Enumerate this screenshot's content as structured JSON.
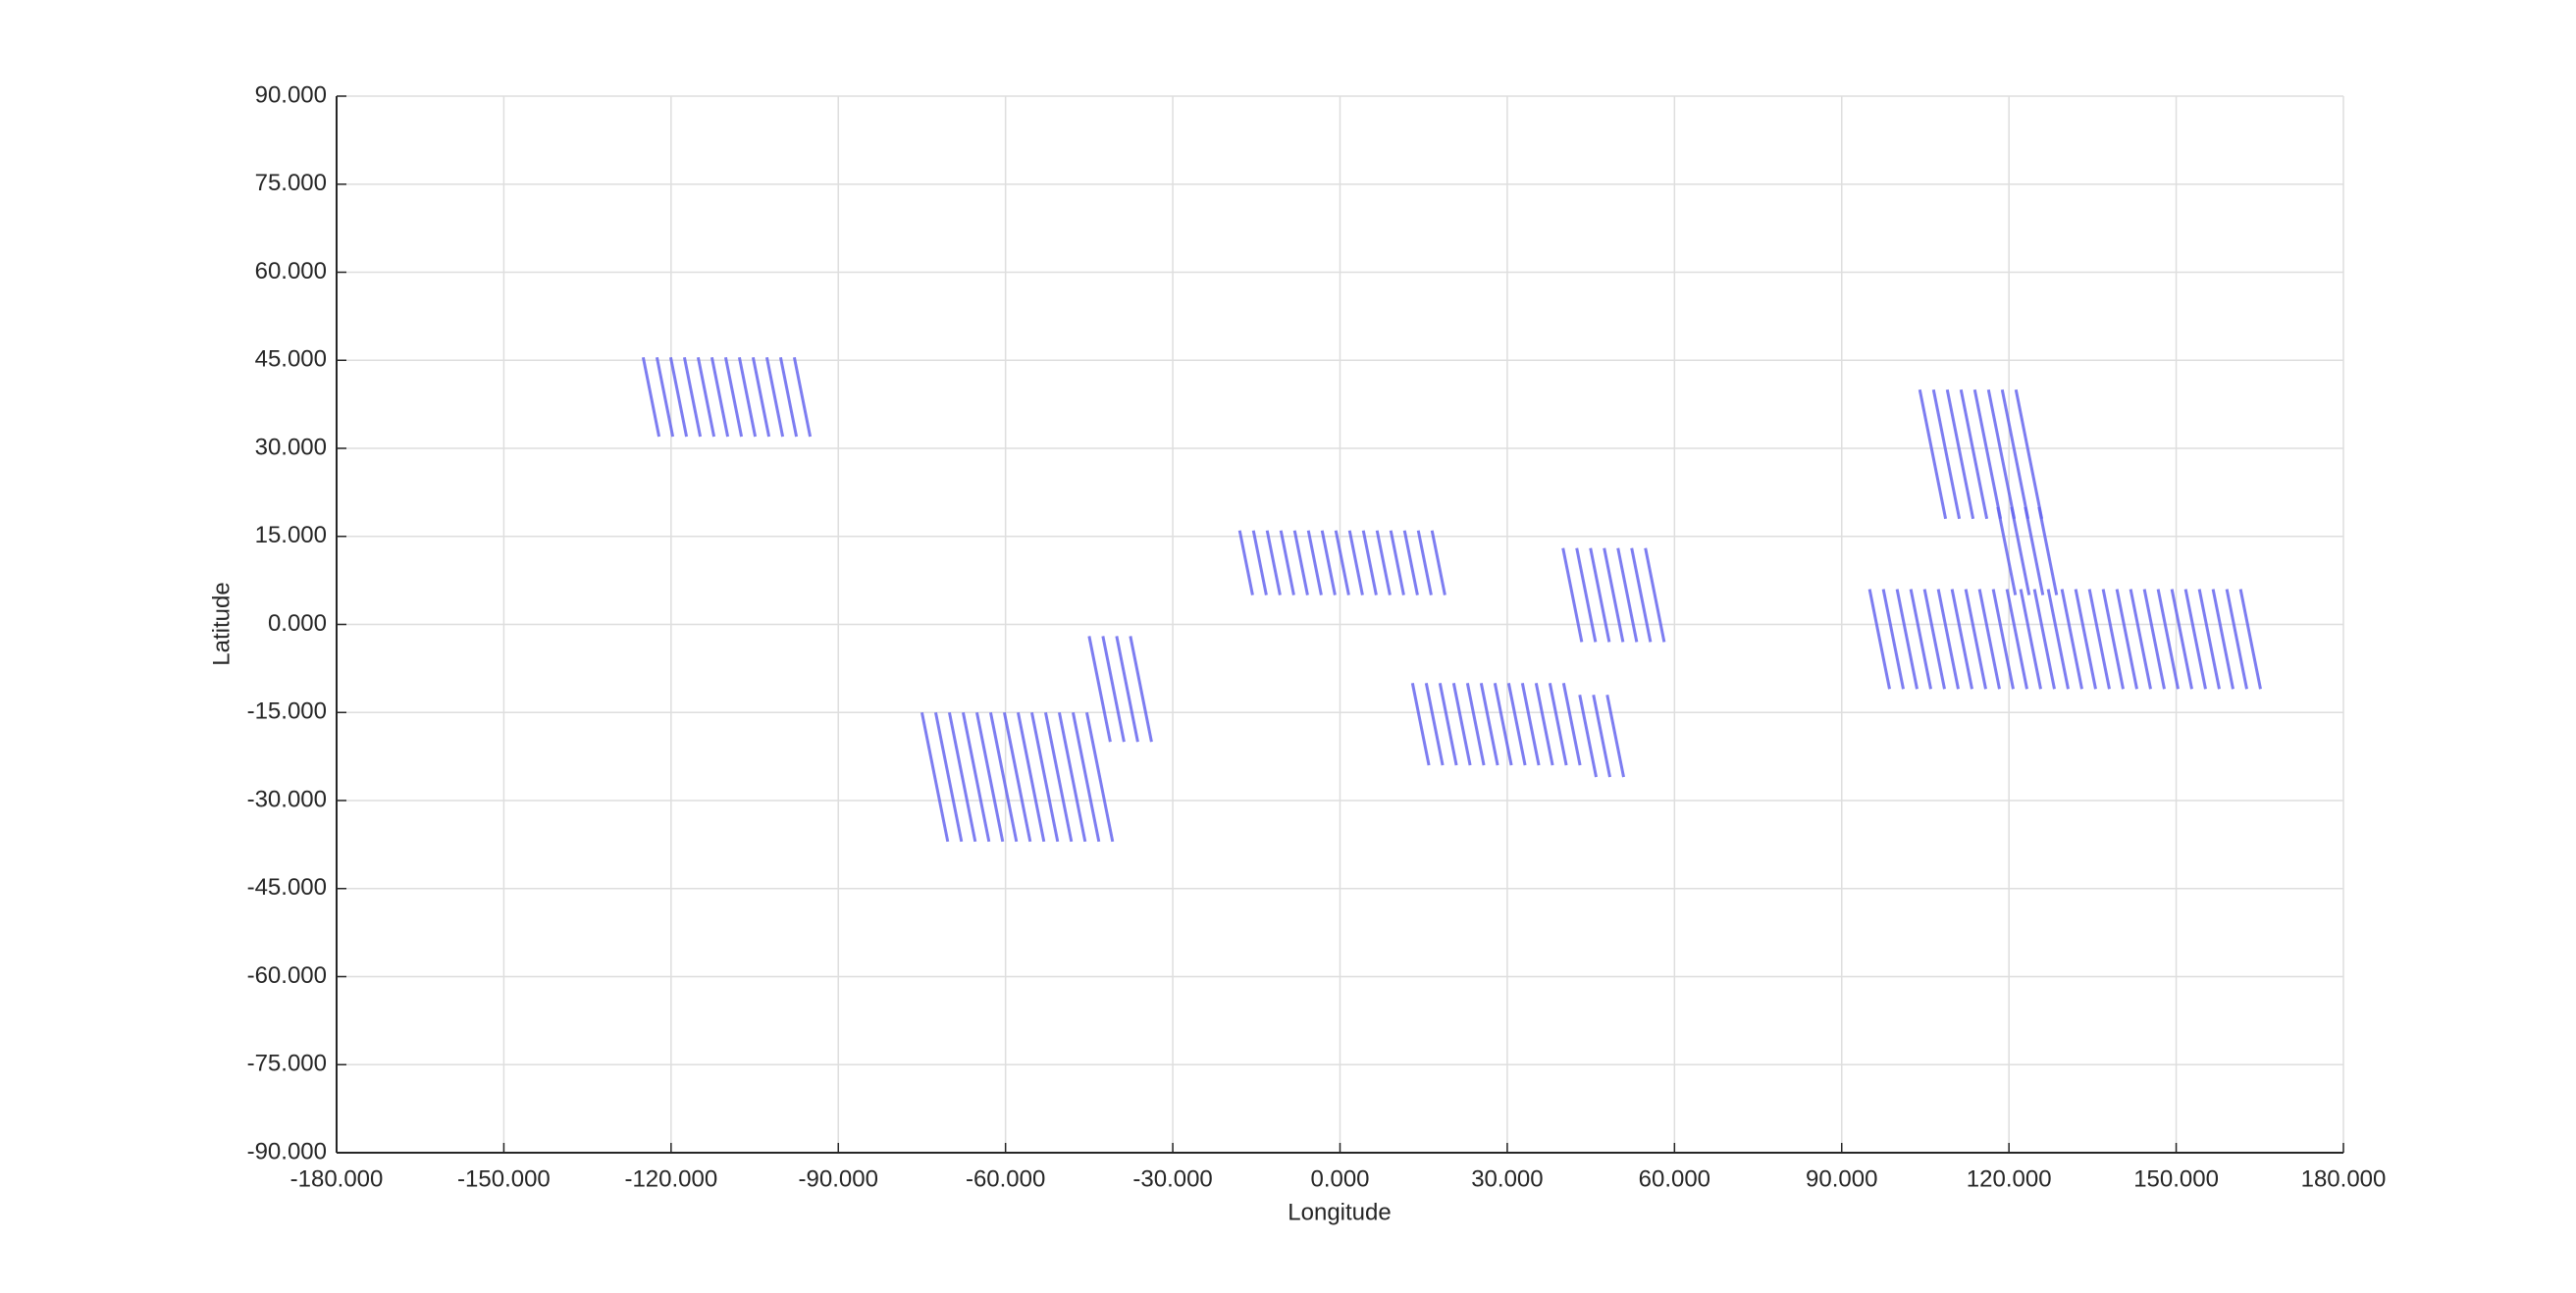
{
  "chart_data": {
    "type": "map",
    "xlabel": "Longitude",
    "ylabel": "Latitude",
    "xlim": [
      -180,
      180
    ],
    "ylim": [
      -90,
      90
    ],
    "xticks": [
      {
        "value": -180,
        "label": "-180.000"
      },
      {
        "value": -150,
        "label": "-150.000"
      },
      {
        "value": -120,
        "label": "-120.000"
      },
      {
        "value": -90,
        "label": "-90.000"
      },
      {
        "value": -60,
        "label": "-60.000"
      },
      {
        "value": -30,
        "label": "-30.000"
      },
      {
        "value": 0,
        "label": "0.000"
      },
      {
        "value": 30,
        "label": "30.000"
      },
      {
        "value": 60,
        "label": "60.000"
      },
      {
        "value": 90,
        "label": "90.000"
      },
      {
        "value": 120,
        "label": "120.000"
      },
      {
        "value": 150,
        "label": "150.000"
      },
      {
        "value": 180,
        "label": "180.000"
      }
    ],
    "yticks": [
      {
        "value": -90,
        "label": "-90.000"
      },
      {
        "value": -75,
        "label": "-75.000"
      },
      {
        "value": -60,
        "label": "-60.000"
      },
      {
        "value": -45,
        "label": "-45.000"
      },
      {
        "value": -30,
        "label": "-30.000"
      },
      {
        "value": -15,
        "label": "-15.000"
      },
      {
        "value": 0,
        "label": "0.000"
      },
      {
        "value": 15,
        "label": "15.000"
      },
      {
        "value": 30,
        "label": "30.000"
      },
      {
        "value": 45,
        "label": "45.000"
      },
      {
        "value": 60,
        "label": "60.000"
      },
      {
        "value": 75,
        "label": "75.000"
      },
      {
        "value": 90,
        "label": "90.000"
      }
    ],
    "grid": true,
    "hatch_color": "#6666ee",
    "regions": [
      {
        "lon": [
          -125,
          -97
        ],
        "lat": [
          32,
          45.5
        ]
      },
      {
        "lon": [
          -75,
          -45
        ],
        "lat": [
          -37,
          -15
        ]
      },
      {
        "lon": [
          -45,
          -37
        ],
        "lat": [
          -20,
          -2
        ]
      },
      {
        "lon": [
          -18,
          17
        ],
        "lat": [
          5,
          16
        ]
      },
      {
        "lon": [
          40,
          55
        ],
        "lat": [
          -3,
          13
        ]
      },
      {
        "lon": [
          13,
          42
        ],
        "lat": [
          -24,
          -10
        ]
      },
      {
        "lon": [
          43,
          50
        ],
        "lat": [
          -26,
          -12
        ]
      },
      {
        "lon": [
          104,
          122
        ],
        "lat": [
          18,
          40
        ]
      },
      {
        "lon": [
          95,
          162
        ],
        "lat": [
          -11,
          6
        ]
      },
      {
        "lon": [
          118,
          127
        ],
        "lat": [
          5,
          20
        ]
      }
    ]
  }
}
